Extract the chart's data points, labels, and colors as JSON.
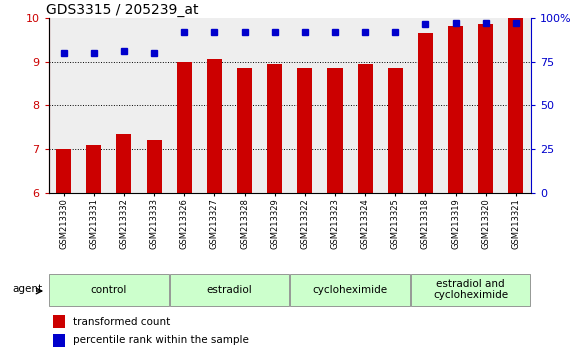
{
  "title": "GDS3315 / 205239_at",
  "samples": [
    "GSM213330",
    "GSM213331",
    "GSM213332",
    "GSM213333",
    "GSM213326",
    "GSM213327",
    "GSM213328",
    "GSM213329",
    "GSM213322",
    "GSM213323",
    "GSM213324",
    "GSM213325",
    "GSM213318",
    "GSM213319",
    "GSM213320",
    "GSM213321"
  ],
  "bar_values": [
    7.0,
    7.1,
    7.35,
    7.2,
    9.0,
    9.05,
    8.85,
    8.95,
    8.85,
    8.85,
    8.95,
    8.85,
    9.65,
    9.8,
    9.85,
    10.0
  ],
  "percentile_values_left_scale": [
    9.2,
    9.2,
    9.25,
    9.2,
    9.67,
    9.68,
    9.67,
    9.67,
    9.67,
    9.67,
    9.67,
    9.67,
    9.85,
    9.87,
    9.87,
    9.87
  ],
  "bar_color": "#cc0000",
  "percentile_color": "#0000cc",
  "ylim_left": [
    6,
    10
  ],
  "ylim_right": [
    0,
    100
  ],
  "yticks_left": [
    6,
    7,
    8,
    9,
    10
  ],
  "ytick_labels_left": [
    "6",
    "7",
    "8",
    "9",
    "10"
  ],
  "yticks_right": [
    0,
    25,
    50,
    75,
    100
  ],
  "ytick_labels_right": [
    "0",
    "25",
    "50",
    "75",
    "100%"
  ],
  "groups": [
    {
      "label": "control",
      "start": 0,
      "end": 4
    },
    {
      "label": "estradiol",
      "start": 4,
      "end": 8
    },
    {
      "label": "cycloheximide",
      "start": 8,
      "end": 12
    },
    {
      "label": "estradiol and\ncycloheximide",
      "start": 12,
      "end": 16
    }
  ],
  "group_color_even": "#ccffcc",
  "group_color_odd": "#aaddaa",
  "group_border_color": "#888888",
  "agent_label": "agent",
  "legend_bar_label": "transformed count",
  "legend_dot_label": "percentile rank within the sample",
  "background_color": "#ffffff",
  "plot_bg_color": "#eeeeee",
  "bar_width": 0.5,
  "tick_label_fontsize": 6.0,
  "group_label_fontsize": 7.5,
  "title_fontsize": 10,
  "axis_label_fontsize": 8,
  "legend_fontsize": 7.5,
  "grid_yticks": [
    7,
    8,
    9
  ],
  "dot_size": 18
}
